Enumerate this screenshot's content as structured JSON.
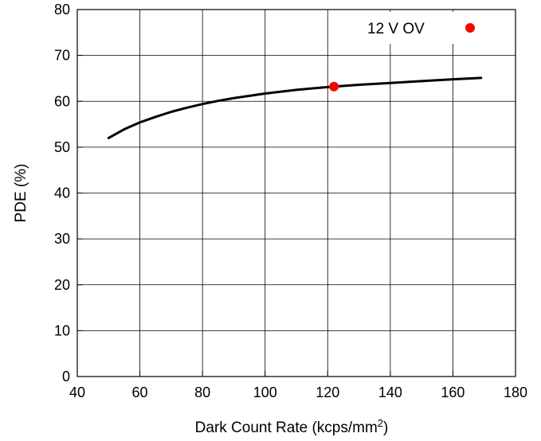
{
  "chart_data": {
    "type": "line",
    "xlabel": "Dark Count Rate (kcps/mm",
    "xlabel_superscript": "2",
    "xlabel_suffix": ")",
    "ylabel": "PDE (%)",
    "xlim": [
      40,
      180
    ],
    "ylim": [
      0,
      80
    ],
    "x_ticks": [
      "40",
      "60",
      "80",
      "100",
      "120",
      "140",
      "160",
      "180"
    ],
    "y_ticks": [
      "0",
      "10",
      "20",
      "30",
      "40",
      "50",
      "60",
      "70",
      "80"
    ],
    "grid": true,
    "legend_position": "top-right",
    "series": [
      {
        "kind": "line",
        "color": "#000000",
        "x": [
          50,
          55,
          60,
          65,
          70,
          75,
          80,
          85,
          90,
          95,
          100,
          110,
          120,
          130,
          140,
          150,
          160,
          169
        ],
        "y": [
          52,
          53.9,
          55.4,
          56.6,
          57.7,
          58.6,
          59.4,
          60.1,
          60.7,
          61.2,
          61.7,
          62.5,
          63.1,
          63.6,
          64.0,
          64.4,
          64.8,
          65.1
        ]
      },
      {
        "name": "12 V OV",
        "kind": "scatter",
        "color": "#ff0000",
        "x": [
          122
        ],
        "y": [
          63.2
        ]
      }
    ]
  }
}
